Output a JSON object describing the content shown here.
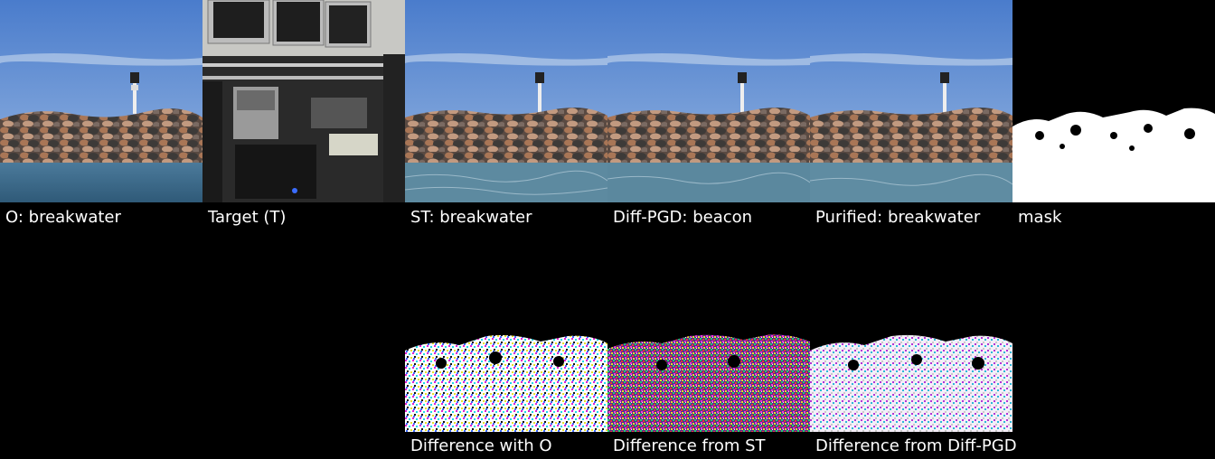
{
  "row1": {
    "original_caption": "O: breakwater",
    "target_caption": "Target (T)",
    "st_caption": "ST: breakwater",
    "diffpgd_caption": "Diff-PGD: beacon",
    "purified_caption": "Purified: breakwater",
    "mask_caption": "mask"
  },
  "row2": {
    "diff_o_caption": "Difference with O",
    "diff_st_caption": "Difference from ST",
    "diff_diffpgd_caption": "Difference from Diff-PGD"
  },
  "colors": {
    "sky_top": "#4f7fcc",
    "sky_bottom": "#8fb2e0",
    "water": "#3b6a8c",
    "rock_dark": "#3c3a38",
    "rock_warm": "#a06a4e",
    "mask_white": "#ffffff"
  }
}
